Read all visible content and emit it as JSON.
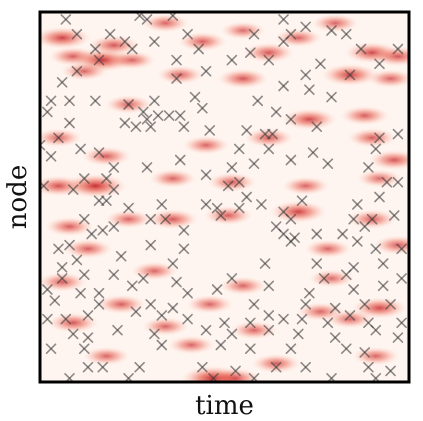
{
  "chart_data": {
    "type": "heatmap",
    "title": "",
    "xlabel": "time",
    "ylabel": "node",
    "xlim": [
      0,
      1
    ],
    "ylim": [
      0,
      1
    ],
    "grid": false,
    "legend": "none",
    "colormap": {
      "low": "#ffffff",
      "high": "#c0141c"
    },
    "heat_blobs": [
      [
        0.06,
        0.07,
        0.75
      ],
      [
        0.09,
        0.12,
        0.55
      ],
      [
        0.17,
        0.13,
        0.85
      ],
      [
        0.2,
        0.09,
        0.6
      ],
      [
        0.25,
        0.13,
        0.5
      ],
      [
        0.34,
        0.03,
        0.5
      ],
      [
        0.44,
        0.08,
        0.55
      ],
      [
        0.55,
        0.05,
        0.45
      ],
      [
        0.62,
        0.11,
        0.6
      ],
      [
        0.7,
        0.07,
        0.5
      ],
      [
        0.8,
        0.03,
        0.5
      ],
      [
        0.9,
        0.11,
        0.7
      ],
      [
        0.97,
        0.12,
        0.6
      ],
      [
        0.12,
        0.16,
        0.5
      ],
      [
        0.38,
        0.17,
        0.5
      ],
      [
        0.55,
        0.18,
        0.6
      ],
      [
        0.84,
        0.17,
        0.75
      ],
      [
        0.95,
        0.18,
        0.5
      ],
      [
        0.24,
        0.25,
        0.5
      ],
      [
        0.73,
        0.29,
        0.7
      ],
      [
        0.88,
        0.28,
        0.55
      ],
      [
        0.05,
        0.34,
        0.5
      ],
      [
        0.18,
        0.39,
        0.55
      ],
      [
        0.45,
        0.36,
        0.5
      ],
      [
        0.62,
        0.34,
        0.55
      ],
      [
        0.9,
        0.34,
        0.55
      ],
      [
        0.96,
        0.4,
        0.6
      ],
      [
        0.05,
        0.47,
        0.65
      ],
      [
        0.15,
        0.47,
        0.9
      ],
      [
        0.36,
        0.45,
        0.5
      ],
      [
        0.52,
        0.46,
        0.55
      ],
      [
        0.72,
        0.47,
        0.5
      ],
      [
        0.92,
        0.45,
        0.45
      ],
      [
        0.08,
        0.58,
        0.55
      ],
      [
        0.24,
        0.56,
        0.5
      ],
      [
        0.36,
        0.56,
        0.6
      ],
      [
        0.51,
        0.55,
        0.55
      ],
      [
        0.7,
        0.54,
        0.75
      ],
      [
        0.9,
        0.56,
        0.55
      ],
      [
        0.13,
        0.64,
        0.55
      ],
      [
        0.78,
        0.64,
        0.5
      ],
      [
        0.97,
        0.63,
        0.55
      ],
      [
        0.06,
        0.73,
        0.55
      ],
      [
        0.31,
        0.7,
        0.5
      ],
      [
        0.55,
        0.74,
        0.5
      ],
      [
        0.79,
        0.72,
        0.45
      ],
      [
        0.22,
        0.79,
        0.55
      ],
      [
        0.46,
        0.79,
        0.5
      ],
      [
        0.76,
        0.81,
        0.5
      ],
      [
        0.92,
        0.8,
        0.7
      ],
      [
        0.09,
        0.84,
        0.6
      ],
      [
        0.34,
        0.85,
        0.5
      ],
      [
        0.58,
        0.86,
        0.5
      ],
      [
        0.84,
        0.83,
        0.5
      ],
      [
        0.18,
        0.93,
        0.5
      ],
      [
        0.41,
        0.9,
        0.5
      ],
      [
        0.64,
        0.95,
        0.55
      ],
      [
        0.91,
        0.93,
        0.5
      ],
      [
        0.47,
        0.99,
        0.95
      ],
      [
        0.53,
        0.99,
        0.6
      ]
    ],
    "events": [
      [
        0.27,
        0.01
      ],
      [
        0.36,
        0.01
      ],
      [
        0.07,
        0.02
      ],
      [
        0.29,
        0.02
      ],
      [
        0.66,
        0.02
      ],
      [
        0.72,
        0.04
      ],
      [
        0.79,
        0.05
      ],
      [
        0.1,
        0.06
      ],
      [
        0.19,
        0.06
      ],
      [
        0.4,
        0.06
      ],
      [
        0.58,
        0.06
      ],
      [
        0.68,
        0.06
      ],
      [
        0.83,
        0.06
      ],
      [
        0.23,
        0.08
      ],
      [
        0.31,
        0.08
      ],
      [
        0.66,
        0.08
      ],
      [
        0.15,
        0.1
      ],
      [
        0.25,
        0.1
      ],
      [
        0.43,
        0.1
      ],
      [
        0.57,
        0.11
      ],
      [
        0.87,
        0.1
      ],
      [
        0.97,
        0.1
      ],
      [
        0.16,
        0.13
      ],
      [
        0.37,
        0.13
      ],
      [
        0.52,
        0.13
      ],
      [
        0.62,
        0.13
      ],
      [
        0.76,
        0.14
      ],
      [
        0.92,
        0.14
      ],
      [
        0.1,
        0.16
      ],
      [
        0.37,
        0.18
      ],
      [
        0.45,
        0.16
      ],
      [
        0.72,
        0.17
      ],
      [
        0.84,
        0.17
      ],
      [
        0.06,
        0.19
      ],
      [
        0.66,
        0.2
      ],
      [
        0.73,
        0.21
      ],
      [
        0.03,
        0.24
      ],
      [
        0.08,
        0.24
      ],
      [
        0.15,
        0.24
      ],
      [
        0.31,
        0.24
      ],
      [
        0.42,
        0.23
      ],
      [
        0.44,
        0.26
      ],
      [
        0.59,
        0.24
      ],
      [
        0.79,
        0.23
      ],
      [
        0.02,
        0.27
      ],
      [
        0.24,
        0.25
      ],
      [
        0.28,
        0.27
      ],
      [
        0.29,
        0.29
      ],
      [
        0.32,
        0.28
      ],
      [
        0.35,
        0.28
      ],
      [
        0.38,
        0.28
      ],
      [
        0.64,
        0.27
      ],
      [
        0.68,
        0.29
      ],
      [
        0.08,
        0.3
      ],
      [
        0.23,
        0.3
      ],
      [
        0.26,
        0.31
      ],
      [
        0.3,
        0.31
      ],
      [
        0.39,
        0.31
      ],
      [
        0.46,
        0.32
      ],
      [
        0.56,
        0.32
      ],
      [
        0.75,
        0.31
      ],
      [
        0.05,
        0.34
      ],
      [
        0.61,
        0.33
      ],
      [
        0.63,
        0.33
      ],
      [
        0.92,
        0.34
      ],
      [
        0.97,
        0.33
      ],
      [
        0.0,
        0.36
      ],
      [
        0.03,
        0.39
      ],
      [
        0.11,
        0.37
      ],
      [
        0.16,
        0.38
      ],
      [
        0.54,
        0.37
      ],
      [
        0.62,
        0.37
      ],
      [
        0.74,
        0.38
      ],
      [
        0.91,
        0.37
      ],
      [
        0.2,
        0.42
      ],
      [
        0.29,
        0.42
      ],
      [
        0.38,
        0.4
      ],
      [
        0.52,
        0.42
      ],
      [
        0.58,
        0.41
      ],
      [
        0.68,
        0.4
      ],
      [
        0.78,
        0.41
      ],
      [
        0.89,
        0.42
      ],
      [
        0.12,
        0.45
      ],
      [
        0.18,
        0.45
      ],
      [
        0.45,
        0.44
      ],
      [
        0.01,
        0.47
      ],
      [
        0.09,
        0.48
      ],
      [
        0.2,
        0.48
      ],
      [
        0.51,
        0.47
      ],
      [
        0.54,
        0.46
      ],
      [
        0.94,
        0.46
      ],
      [
        0.97,
        0.46
      ],
      [
        0.16,
        0.51
      ],
      [
        0.18,
        0.51
      ],
      [
        0.24,
        0.53
      ],
      [
        0.33,
        0.52
      ],
      [
        0.45,
        0.52
      ],
      [
        0.48,
        0.53
      ],
      [
        0.54,
        0.53
      ],
      [
        0.56,
        0.5
      ],
      [
        0.6,
        0.52
      ],
      [
        0.71,
        0.51
      ],
      [
        0.86,
        0.52
      ],
      [
        0.92,
        0.5
      ],
      [
        0.12,
        0.56
      ],
      [
        0.3,
        0.56
      ],
      [
        0.34,
        0.56
      ],
      [
        0.49,
        0.55
      ],
      [
        0.66,
        0.54
      ],
      [
        0.68,
        0.56
      ],
      [
        0.85,
        0.56
      ],
      [
        0.9,
        0.56
      ],
      [
        0.96,
        0.55
      ],
      [
        0.14,
        0.6
      ],
      [
        0.17,
        0.59
      ],
      [
        0.2,
        0.58
      ],
      [
        0.39,
        0.59
      ],
      [
        0.64,
        0.58
      ],
      [
        0.66,
        0.6
      ],
      [
        0.69,
        0.61
      ],
      [
        0.75,
        0.6
      ],
      [
        0.82,
        0.6
      ],
      [
        0.88,
        0.58
      ],
      [
        0.05,
        0.64
      ],
      [
        0.08,
        0.63
      ],
      [
        0.3,
        0.63
      ],
      [
        0.39,
        0.64
      ],
      [
        0.68,
        0.62
      ],
      [
        0.86,
        0.62
      ],
      [
        0.91,
        0.64
      ],
      [
        0.98,
        0.64
      ],
      [
        0.06,
        0.69
      ],
      [
        0.1,
        0.67
      ],
      [
        0.22,
        0.66
      ],
      [
        0.36,
        0.68
      ],
      [
        0.61,
        0.68
      ],
      [
        0.75,
        0.68
      ],
      [
        0.85,
        0.69
      ],
      [
        0.93,
        0.68
      ],
      [
        0.06,
        0.72
      ],
      [
        0.12,
        0.71
      ],
      [
        0.2,
        0.71
      ],
      [
        0.28,
        0.72
      ],
      [
        0.37,
        0.73
      ],
      [
        0.52,
        0.72
      ],
      [
        0.77,
        0.72
      ],
      [
        0.83,
        0.71
      ],
      [
        0.98,
        0.72
      ],
      [
        0.02,
        0.75
      ],
      [
        0.11,
        0.76
      ],
      [
        0.16,
        0.76
      ],
      [
        0.25,
        0.74
      ],
      [
        0.4,
        0.76
      ],
      [
        0.48,
        0.75
      ],
      [
        0.62,
        0.74
      ],
      [
        0.73,
        0.76
      ],
      [
        0.85,
        0.75
      ],
      [
        0.93,
        0.74
      ],
      [
        0.04,
        0.78
      ],
      [
        0.16,
        0.79
      ],
      [
        0.3,
        0.79
      ],
      [
        0.36,
        0.8
      ],
      [
        0.58,
        0.79
      ],
      [
        0.72,
        0.79
      ],
      [
        0.8,
        0.8
      ],
      [
        0.88,
        0.79
      ],
      [
        0.95,
        0.79
      ],
      [
        0.02,
        0.83
      ],
      [
        0.07,
        0.83
      ],
      [
        0.13,
        0.82
      ],
      [
        0.26,
        0.81
      ],
      [
        0.33,
        0.82
      ],
      [
        0.4,
        0.83
      ],
      [
        0.5,
        0.84
      ],
      [
        0.57,
        0.84
      ],
      [
        0.62,
        0.82
      ],
      [
        0.66,
        0.83
      ],
      [
        0.71,
        0.83
      ],
      [
        0.78,
        0.84
      ],
      [
        0.84,
        0.82
      ],
      [
        0.89,
        0.84
      ],
      [
        0.98,
        0.84
      ],
      [
        0.09,
        0.87
      ],
      [
        0.13,
        0.88
      ],
      [
        0.21,
        0.86
      ],
      [
        0.31,
        0.87
      ],
      [
        0.45,
        0.86
      ],
      [
        0.52,
        0.87
      ],
      [
        0.62,
        0.86
      ],
      [
        0.7,
        0.87
      ],
      [
        0.8,
        0.88
      ],
      [
        0.91,
        0.86
      ],
      [
        0.97,
        0.88
      ],
      [
        0.03,
        0.91
      ],
      [
        0.12,
        0.91
      ],
      [
        0.33,
        0.9
      ],
      [
        0.49,
        0.9
      ],
      [
        0.57,
        0.91
      ],
      [
        0.68,
        0.91
      ],
      [
        0.83,
        0.91
      ],
      [
        0.88,
        0.92
      ],
      [
        0.13,
        0.96
      ],
      [
        0.17,
        0.96
      ],
      [
        0.27,
        0.96
      ],
      [
        0.44,
        0.96
      ],
      [
        0.53,
        0.97
      ],
      [
        0.64,
        0.96
      ],
      [
        0.72,
        0.96
      ],
      [
        0.89,
        0.96
      ],
      [
        0.95,
        0.97
      ],
      [
        0.08,
        0.99
      ],
      [
        0.24,
        0.99
      ],
      [
        0.47,
        0.99
      ],
      [
        0.58,
        0.99
      ],
      [
        0.79,
        0.99
      ],
      [
        0.91,
        0.99
      ]
    ]
  }
}
